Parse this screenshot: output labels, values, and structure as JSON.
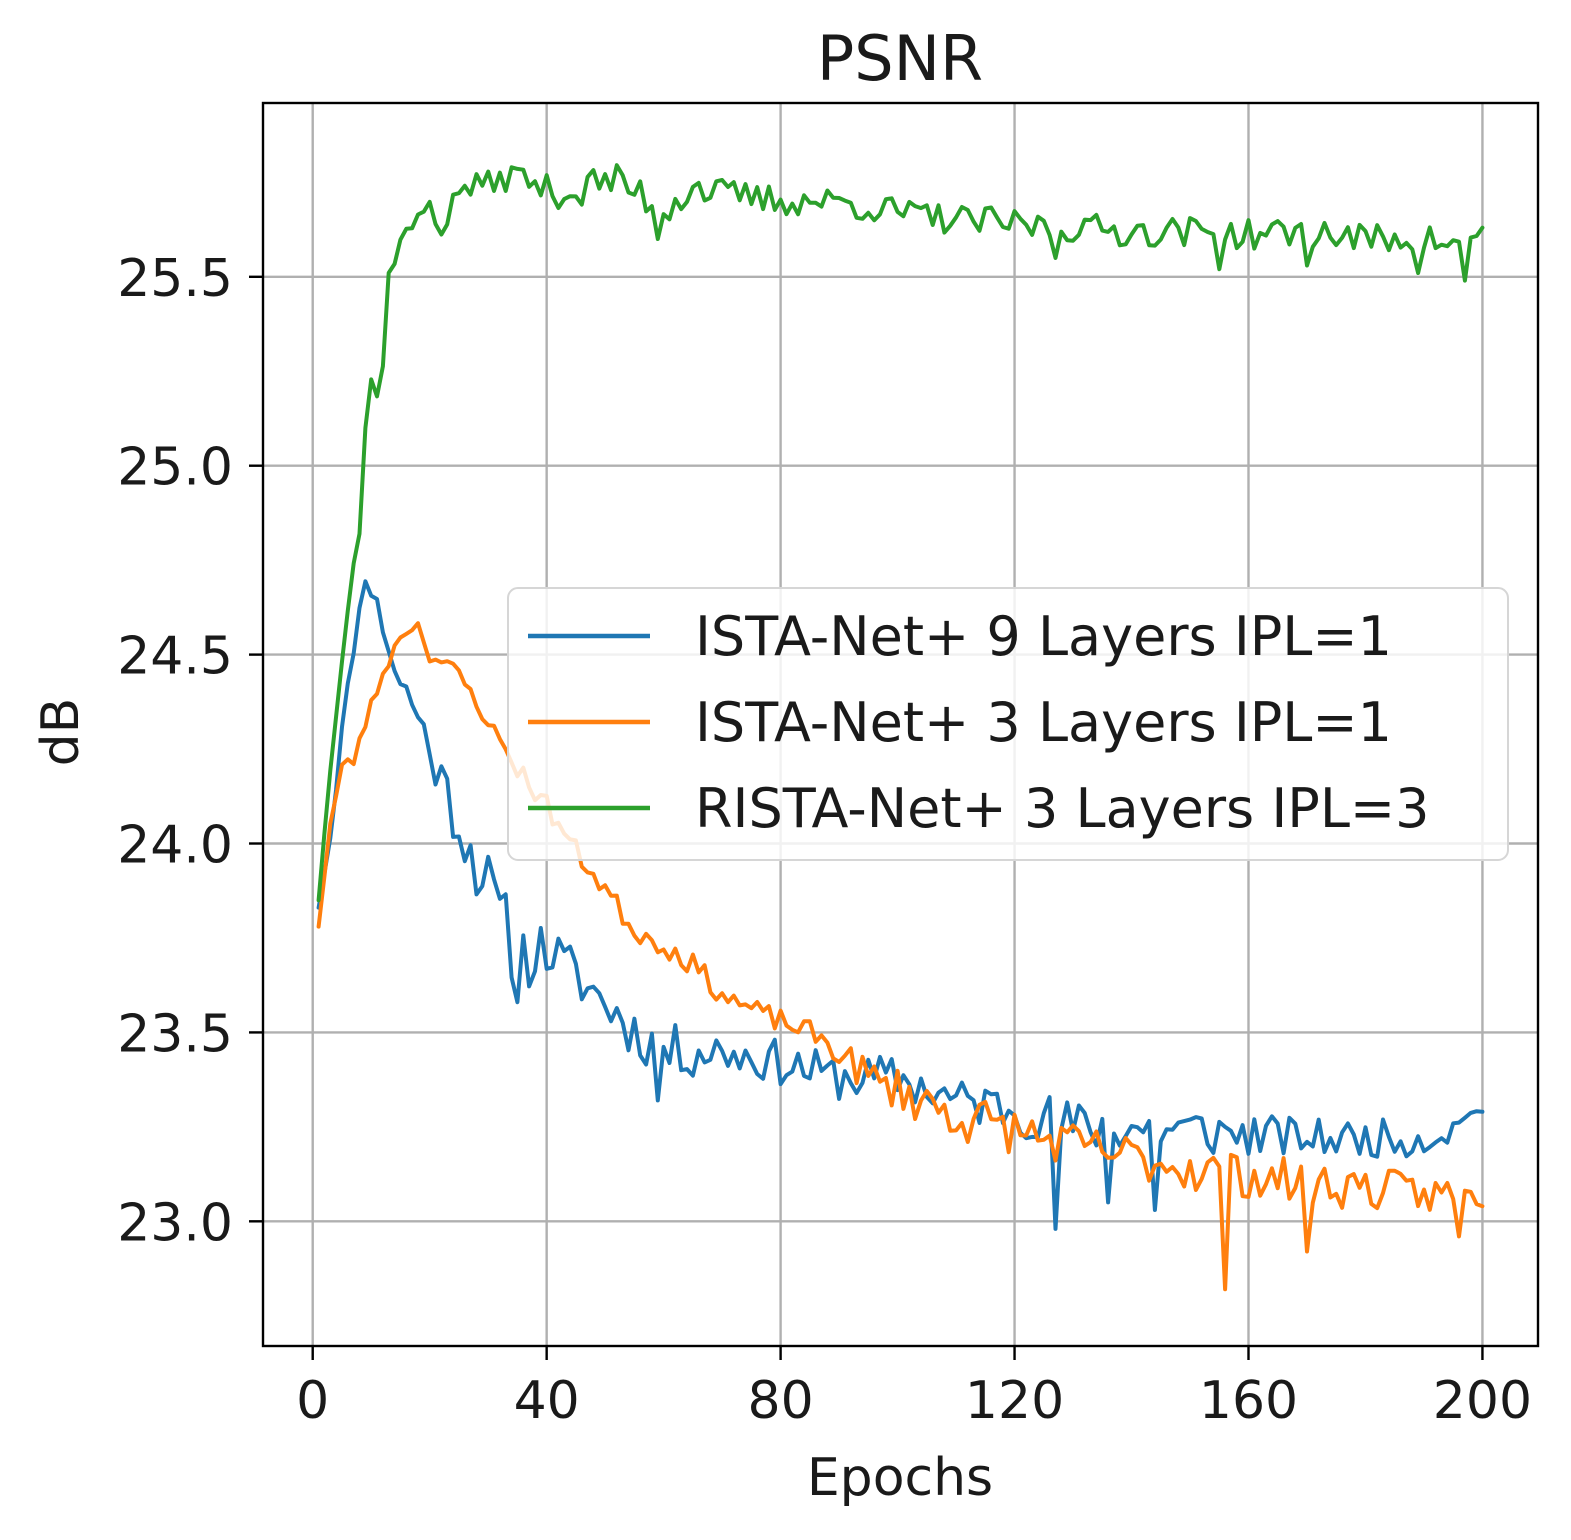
{
  "chart_data": {
    "type": "line",
    "title": "PSNR",
    "xlabel": "Epochs",
    "ylabel": "dB",
    "xlim": [
      -8.5,
      209.5
    ],
    "ylim": [
      22.67,
      25.96
    ],
    "xticks": [
      0,
      40,
      80,
      120,
      160,
      200
    ],
    "xtick_labels": [
      "0",
      "40",
      "80",
      "120",
      "160",
      "200"
    ],
    "yticks": [
      23.0,
      23.5,
      24.0,
      24.5,
      25.0,
      25.5
    ],
    "ytick_labels": [
      "23.0",
      "23.5",
      "24.0",
      "24.5",
      "25.0",
      "25.5"
    ],
    "grid": true,
    "legend_position": "center-right",
    "series": [
      {
        "name": "ISTA-Net+ 9 Layers IPL=1",
        "color": "#1f77b4",
        "keypoints": [
          [
            1,
            23.83
          ],
          [
            3,
            24.02
          ],
          [
            5,
            24.3
          ],
          [
            7,
            24.52
          ],
          [
            9,
            24.71
          ],
          [
            11,
            24.63
          ],
          [
            13,
            24.52
          ],
          [
            15,
            24.42
          ],
          [
            17,
            24.38
          ],
          [
            20,
            24.25
          ],
          [
            25,
            24.05
          ],
          [
            30,
            23.88
          ],
          [
            35,
            23.7
          ],
          [
            40,
            23.72
          ],
          [
            45,
            23.65
          ],
          [
            50,
            23.58
          ],
          [
            55,
            23.5
          ],
          [
            60,
            23.45
          ],
          [
            65,
            23.45
          ],
          [
            70,
            23.45
          ],
          [
            80,
            23.42
          ],
          [
            90,
            23.38
          ],
          [
            100,
            23.38
          ],
          [
            110,
            23.32
          ],
          [
            120,
            23.3
          ],
          [
            130,
            23.25
          ],
          [
            140,
            23.25
          ],
          [
            150,
            23.24
          ],
          [
            160,
            23.23
          ],
          [
            170,
            23.22
          ],
          [
            180,
            23.22
          ],
          [
            190,
            23.22
          ],
          [
            196,
            23.25
          ],
          [
            198,
            23.3
          ],
          [
            200,
            23.29
          ]
        ],
        "noise_amp": [
          0,
          0.02,
          0.02,
          0.02,
          0.02,
          0.03,
          0.04,
          0.05,
          0.06,
          0.07,
          0.08,
          0.1,
          0.1,
          0.08,
          0.07,
          0.07,
          0.07,
          0.07,
          0.07,
          0.06,
          0.06,
          0.06,
          0.06,
          0.06,
          0.07,
          0.07,
          0.07,
          0.07,
          0.06,
          0.05,
          0.05,
          0.05,
          0.04,
          0.02,
          0.0
        ],
        "seed": 11,
        "spikes": [
          [
            35,
            23.58
          ],
          [
            59,
            23.32
          ],
          [
            127,
            22.98
          ],
          [
            136,
            23.05
          ],
          [
            144,
            23.03
          ]
        ]
      },
      {
        "name": "ISTA-Net+ 3 Layers IPL=1",
        "color": "#ff7f0e",
        "keypoints": [
          [
            1,
            23.78
          ],
          [
            3,
            24.05
          ],
          [
            5,
            24.2
          ],
          [
            7,
            24.22
          ],
          [
            9,
            24.32
          ],
          [
            12,
            24.45
          ],
          [
            15,
            24.55
          ],
          [
            18,
            24.58
          ],
          [
            20,
            24.5
          ],
          [
            25,
            24.45
          ],
          [
            30,
            24.32
          ],
          [
            35,
            24.2
          ],
          [
            40,
            24.1
          ],
          [
            45,
            23.98
          ],
          [
            50,
            23.88
          ],
          [
            55,
            23.77
          ],
          [
            60,
            23.73
          ],
          [
            65,
            23.68
          ],
          [
            70,
            23.6
          ],
          [
            75,
            23.56
          ],
          [
            80,
            23.53
          ],
          [
            85,
            23.5
          ],
          [
            90,
            23.45
          ],
          [
            95,
            23.38
          ],
          [
            100,
            23.35
          ],
          [
            110,
            23.28
          ],
          [
            120,
            23.24
          ],
          [
            130,
            23.2
          ],
          [
            140,
            23.17
          ],
          [
            150,
            23.14
          ],
          [
            160,
            23.12
          ],
          [
            170,
            23.1
          ],
          [
            180,
            23.09
          ],
          [
            190,
            23.07
          ],
          [
            197,
            23.08
          ],
          [
            200,
            23.04
          ]
        ],
        "noise_amp": [
          0,
          0.02,
          0.02,
          0.02,
          0.02,
          0.02,
          0.01,
          0.01,
          0.02,
          0.02,
          0.02,
          0.03,
          0.03,
          0.03,
          0.03,
          0.03,
          0.03,
          0.03,
          0.03,
          0.03,
          0.03,
          0.03,
          0.04,
          0.05,
          0.06,
          0.07,
          0.06,
          0.06,
          0.06,
          0.06,
          0.06,
          0.06,
          0.06,
          0.05,
          0.04,
          0.0
        ],
        "seed": 23,
        "spikes": [
          [
            156,
            22.82
          ],
          [
            170,
            22.92
          ],
          [
            196,
            22.96
          ]
        ]
      },
      {
        "name": "RISTA-Net+ 3 Layers IPL=3",
        "color": "#2ca02c",
        "keypoints": [
          [
            1,
            23.85
          ],
          [
            3,
            24.2
          ],
          [
            5,
            24.5
          ],
          [
            7,
            24.75
          ],
          [
            8,
            24.82
          ],
          [
            9,
            25.1
          ],
          [
            10,
            25.22
          ],
          [
            11,
            25.18
          ],
          [
            12,
            25.28
          ],
          [
            13,
            25.5
          ],
          [
            15,
            25.6
          ],
          [
            18,
            25.65
          ],
          [
            20,
            25.7
          ],
          [
            22,
            25.62
          ],
          [
            25,
            25.73
          ],
          [
            30,
            25.75
          ],
          [
            35,
            25.77
          ],
          [
            40,
            25.73
          ],
          [
            45,
            25.72
          ],
          [
            50,
            25.76
          ],
          [
            55,
            25.73
          ],
          [
            60,
            25.68
          ],
          [
            65,
            25.74
          ],
          [
            70,
            25.72
          ],
          [
            80,
            25.7
          ],
          [
            90,
            25.7
          ],
          [
            100,
            25.67
          ],
          [
            110,
            25.65
          ],
          [
            120,
            25.64
          ],
          [
            130,
            25.63
          ],
          [
            140,
            25.62
          ],
          [
            150,
            25.62
          ],
          [
            160,
            25.61
          ],
          [
            170,
            25.62
          ],
          [
            180,
            25.6
          ],
          [
            190,
            25.6
          ],
          [
            197,
            25.58
          ],
          [
            200,
            25.63
          ]
        ],
        "noise_amp": [
          0,
          0.01,
          0.02,
          0.02,
          0.0,
          0.0,
          0.02,
          0.02,
          0.02,
          0.02,
          0.02,
          0.02,
          0.02,
          0.03,
          0.03,
          0.03,
          0.04,
          0.04,
          0.05,
          0.05,
          0.05,
          0.05,
          0.05,
          0.04,
          0.04,
          0.04,
          0.04,
          0.04,
          0.04,
          0.04,
          0.04,
          0.04,
          0.04,
          0.04,
          0.04,
          0.04,
          0.03,
          0.0
        ],
        "seed": 37,
        "spikes": [
          [
            59,
            25.6
          ],
          [
            127,
            25.55
          ],
          [
            155,
            25.52
          ],
          [
            170,
            25.53
          ],
          [
            189,
            25.51
          ],
          [
            197,
            25.49
          ]
        ]
      }
    ]
  }
}
